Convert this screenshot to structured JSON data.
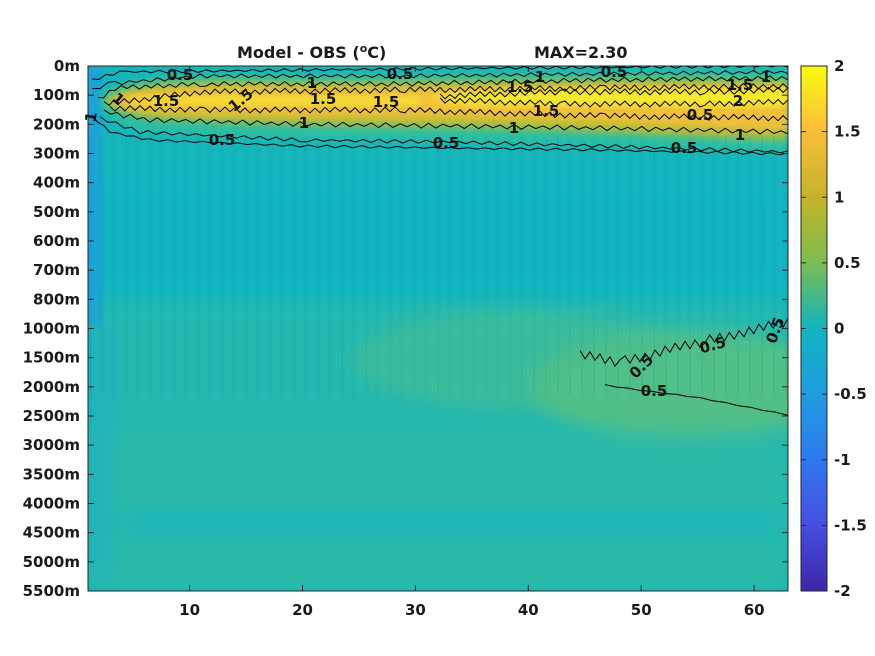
{
  "chart_data": {
    "type": "heatmap",
    "title": "Model - OBS (",
    "title_unit_sup": "o",
    "title_unit_suffix": "C)",
    "max_label": "MAX=2.30",
    "y_tick_labels": [
      "0m",
      "100m",
      "200m",
      "300m",
      "400m",
      "500m",
      "600m",
      "700m",
      "800m",
      "1000m",
      "1500m",
      "2000m",
      "2500m",
      "3000m",
      "3500m",
      "4000m",
      "4500m",
      "5000m",
      "5500m"
    ],
    "x_ticks": [
      10,
      20,
      30,
      40,
      50,
      60
    ],
    "xlim": [
      1,
      63
    ],
    "colorbar": {
      "ticks": [
        "2",
        "1.5",
        "1",
        "0.5",
        "0",
        "-0.5",
        "-1",
        "-1.5",
        "-2"
      ],
      "range": [
        -2,
        2
      ],
      "colormap": "parula"
    },
    "contour_levels": [
      0.5,
      1,
      1.5,
      2
    ],
    "contour_labels": [
      {
        "text": "0.5"
      },
      {
        "text": "0.5"
      },
      {
        "text": "0.5"
      },
      {
        "text": "1"
      },
      {
        "text": "1"
      },
      {
        "text": "1"
      },
      {
        "text": "1.5"
      },
      {
        "text": "1.5"
      },
      {
        "text": "1.5"
      },
      {
        "text": "1.5"
      },
      {
        "text": "1.5"
      },
      {
        "text": "1.5"
      },
      {
        "text": "1.5"
      },
      {
        "text": "2"
      },
      {
        "text": "1"
      },
      {
        "text": "1"
      },
      {
        "text": "1"
      },
      {
        "text": "1"
      },
      {
        "text": "1"
      },
      {
        "text": "0.5"
      },
      {
        "text": "0.5"
      },
      {
        "text": "0.5"
      },
      {
        "text": "0.5"
      },
      {
        "text": "0.5"
      },
      {
        "text": "0.5"
      },
      {
        "text": "0.5"
      },
      {
        "text": "0.5"
      }
    ],
    "colors": {
      "background_mid": "#13b5c0",
      "warm_band": "#f0c030",
      "hot_core": "#f5ee30",
      "deep_green": "#5cc07a",
      "contour": "#000000"
    }
  }
}
